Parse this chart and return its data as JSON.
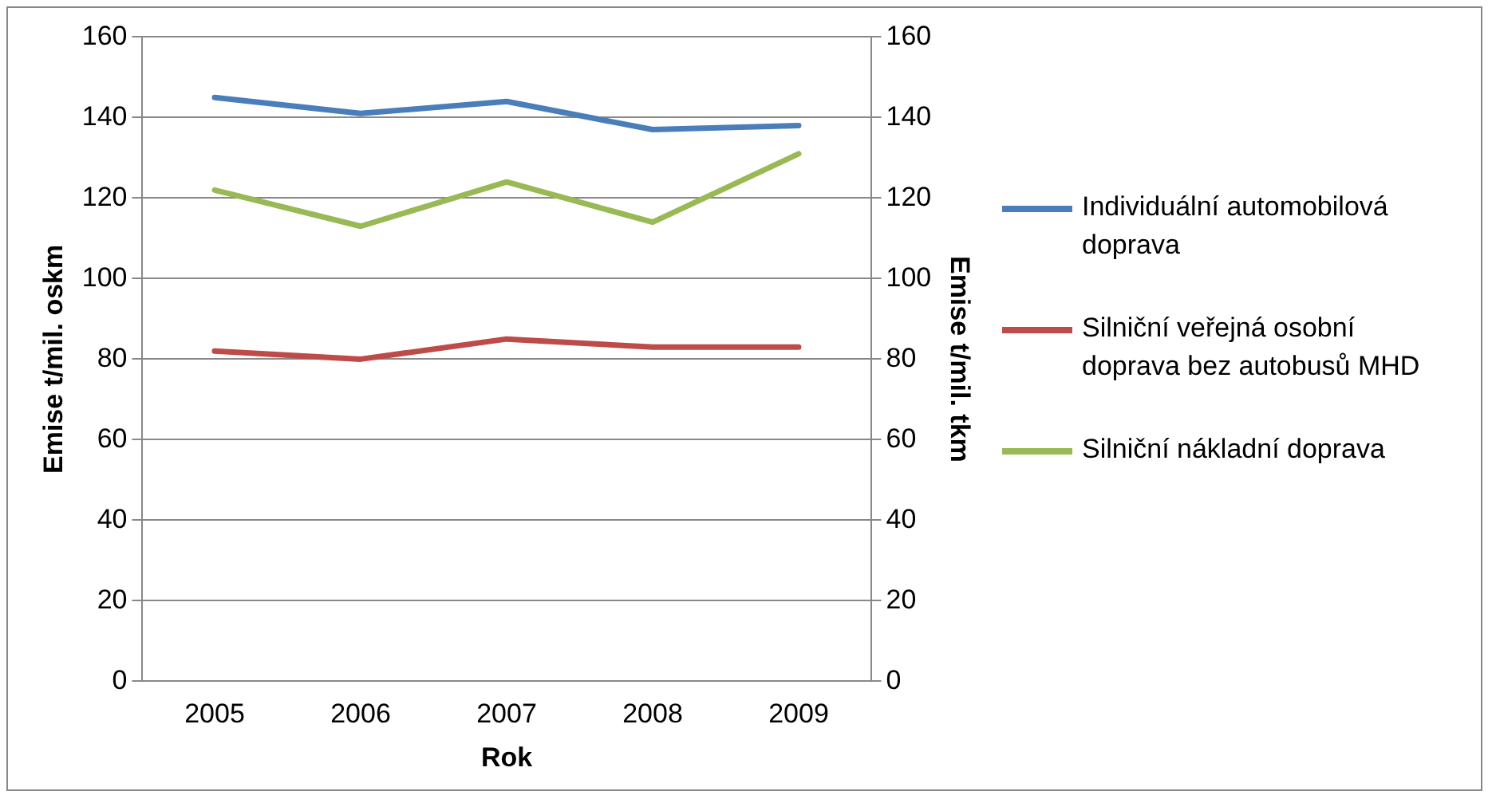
{
  "chart_data": {
    "type": "line",
    "xlabel": "Rok",
    "ylabel": "Emise t/mil. oskm",
    "y2label": "Emise t/mil. tkm",
    "categories": [
      "2005",
      "2006",
      "2007",
      "2008",
      "2009"
    ],
    "series": [
      {
        "name": "Individuální automobilová doprava",
        "color": "#4a7ebb",
        "values": [
          145,
          141,
          144,
          137,
          138
        ]
      },
      {
        "name": "Silniční veřejná osobní doprava bez autobusů MHD",
        "color": "#be4b48",
        "values": [
          82,
          80,
          85,
          83,
          83
        ]
      },
      {
        "name": "Silniční nákladní doprava",
        "color": "#98b954",
        "values": [
          122,
          113,
          124,
          114,
          131
        ]
      }
    ],
    "ylim": [
      0,
      160
    ],
    "yticks": [
      0,
      20,
      40,
      60,
      80,
      100,
      120,
      140,
      160
    ],
    "y2lim": [
      0,
      160
    ],
    "y2ticks": [
      0,
      20,
      40,
      60,
      80,
      100,
      120,
      140,
      160
    ],
    "grid": "y",
    "legend": "right",
    "marker": "none",
    "line_style": "solid"
  }
}
